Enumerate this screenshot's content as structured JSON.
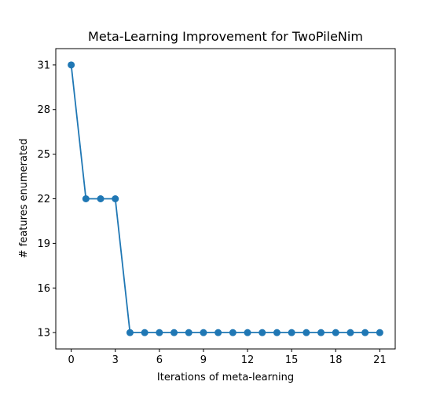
{
  "chart_data": {
    "type": "line",
    "title": "Meta-Learning Improvement for TwoPileNim",
    "xlabel": "Iterations of meta-learning",
    "ylabel": "# features enumerated",
    "x": [
      0,
      1,
      2,
      3,
      4,
      5,
      6,
      7,
      8,
      9,
      10,
      11,
      12,
      13,
      14,
      15,
      16,
      17,
      18,
      19,
      20,
      21
    ],
    "series": [
      {
        "values": [
          31,
          22,
          22,
          22,
          13,
          13,
          13,
          13,
          13,
          13,
          13,
          13,
          13,
          13,
          13,
          13,
          13,
          13,
          13,
          13,
          13,
          13
        ],
        "color": "#1f77b4",
        "marker": "circle"
      }
    ],
    "xlim": [
      -1.05,
      22.05
    ],
    "ylim": [
      11.9,
      32.1
    ],
    "xticks": [
      0,
      3,
      6,
      9,
      12,
      15,
      18,
      21
    ],
    "yticks": [
      13,
      16,
      19,
      22,
      25,
      28,
      31
    ],
    "grid": false,
    "legend": "none"
  }
}
